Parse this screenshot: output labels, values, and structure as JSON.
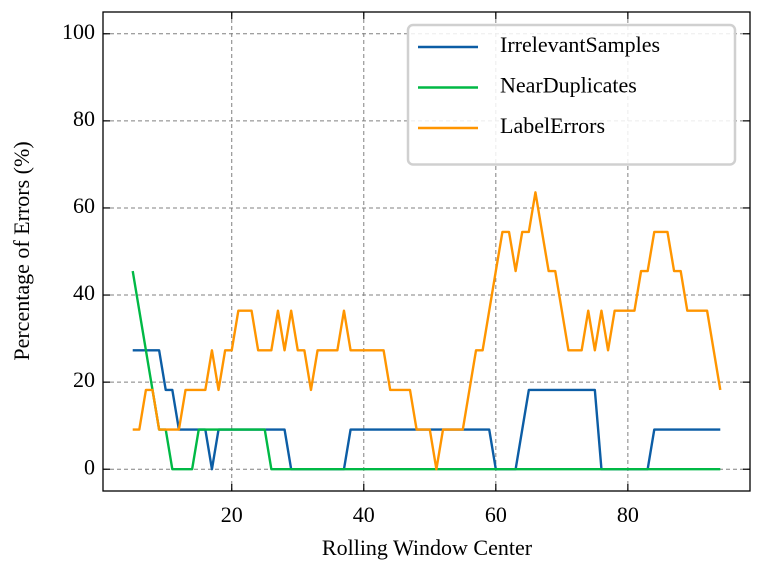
{
  "chart_data": {
    "type": "line",
    "xlabel": "Rolling Window Center",
    "ylabel": "Percentage of Errors (%)",
    "x": [
      5,
      6,
      7,
      8,
      9,
      10,
      11,
      12,
      13,
      14,
      15,
      16,
      17,
      18,
      19,
      20,
      21,
      22,
      23,
      24,
      25,
      26,
      27,
      28,
      29,
      30,
      31,
      32,
      33,
      34,
      35,
      36,
      37,
      38,
      39,
      40,
      41,
      42,
      43,
      44,
      45,
      46,
      47,
      48,
      49,
      50,
      51,
      52,
      53,
      54,
      55,
      56,
      57,
      58,
      59,
      60,
      61,
      62,
      63,
      64,
      65,
      66,
      67,
      68,
      69,
      70,
      71,
      72,
      73,
      74,
      75,
      76,
      77,
      78,
      79,
      80,
      81,
      82,
      83,
      84,
      85,
      86,
      87,
      88,
      89,
      90,
      91,
      92,
      93,
      94
    ],
    "series": [
      {
        "name": "IrrelevantSamples",
        "color": "#0c5da5",
        "values": [
          27.3,
          27.3,
          27.3,
          27.3,
          27.3,
          18.2,
          18.2,
          9.1,
          9.1,
          9.1,
          9.1,
          9.1,
          0,
          9.1,
          9.1,
          9.1,
          9.1,
          9.1,
          9.1,
          9.1,
          9.1,
          9.1,
          9.1,
          9.1,
          0,
          0,
          0,
          0,
          0,
          0,
          0,
          0,
          0,
          9.1,
          9.1,
          9.1,
          9.1,
          9.1,
          9.1,
          9.1,
          9.1,
          9.1,
          9.1,
          9.1,
          9.1,
          9.1,
          9.1,
          9.1,
          9.1,
          9.1,
          9.1,
          9.1,
          9.1,
          9.1,
          9.1,
          0,
          0,
          0,
          0,
          9.1,
          18.2,
          18.2,
          18.2,
          18.2,
          18.2,
          18.2,
          18.2,
          18.2,
          18.2,
          18.2,
          18.2,
          0,
          0,
          0,
          0,
          0,
          0,
          0,
          0,
          9.1,
          9.1,
          9.1,
          9.1,
          9.1,
          9.1,
          9.1,
          9.1,
          9.1,
          9.1,
          9.1
        ]
      },
      {
        "name": "NearDuplicates",
        "color": "#00b945",
        "values": [
          45.5,
          36.4,
          27.3,
          18.2,
          9.1,
          9.1,
          0,
          0,
          0,
          0,
          9.1,
          9.1,
          9.1,
          9.1,
          9.1,
          9.1,
          9.1,
          9.1,
          9.1,
          9.1,
          9.1,
          0,
          0,
          0,
          0,
          0,
          0,
          0,
          0,
          0,
          0,
          0,
          0,
          0,
          0,
          0,
          0,
          0,
          0,
          0,
          0,
          0,
          0,
          0,
          0,
          0,
          0,
          0,
          0,
          0,
          0,
          0,
          0,
          0,
          0,
          0,
          0,
          0,
          0,
          0,
          0,
          0,
          0,
          0,
          0,
          0,
          0,
          0,
          0,
          0,
          0,
          0,
          0,
          0,
          0,
          0,
          0,
          0,
          0,
          0,
          0,
          0,
          0,
          0,
          0,
          0,
          0,
          0,
          0,
          0
        ]
      },
      {
        "name": "LabelErrors",
        "color": "#ff9500",
        "values": [
          9.1,
          9.1,
          18.2,
          18.2,
          9.1,
          9.1,
          9.1,
          9.1,
          18.2,
          18.2,
          18.2,
          18.2,
          27.3,
          18.2,
          27.3,
          27.3,
          36.4,
          36.4,
          36.4,
          27.3,
          27.3,
          27.3,
          36.4,
          27.3,
          36.4,
          27.3,
          27.3,
          18.2,
          27.3,
          27.3,
          27.3,
          27.3,
          36.4,
          27.3,
          27.3,
          27.3,
          27.3,
          27.3,
          27.3,
          18.2,
          18.2,
          18.2,
          18.2,
          9.1,
          9.1,
          9.1,
          0,
          9.1,
          9.1,
          9.1,
          9.1,
          18.2,
          27.3,
          27.3,
          36.4,
          45.5,
          54.5,
          54.5,
          45.5,
          54.5,
          54.5,
          63.6,
          54.5,
          45.5,
          45.5,
          36.4,
          27.3,
          27.3,
          27.3,
          36.4,
          27.3,
          36.4,
          27.3,
          36.4,
          36.4,
          36.4,
          36.4,
          45.5,
          45.5,
          54.5,
          54.5,
          54.5,
          45.5,
          45.5,
          36.4,
          36.4,
          36.4,
          36.4,
          27.3,
          18.2
        ]
      }
    ],
    "xlim": [
      0.5,
      98.5
    ],
    "ylim": [
      -5,
      105
    ],
    "xticks": [
      20,
      40,
      60,
      80
    ],
    "yticks": [
      0,
      20,
      40,
      60,
      80,
      100
    ],
    "grid": true,
    "legend": "upper right"
  }
}
